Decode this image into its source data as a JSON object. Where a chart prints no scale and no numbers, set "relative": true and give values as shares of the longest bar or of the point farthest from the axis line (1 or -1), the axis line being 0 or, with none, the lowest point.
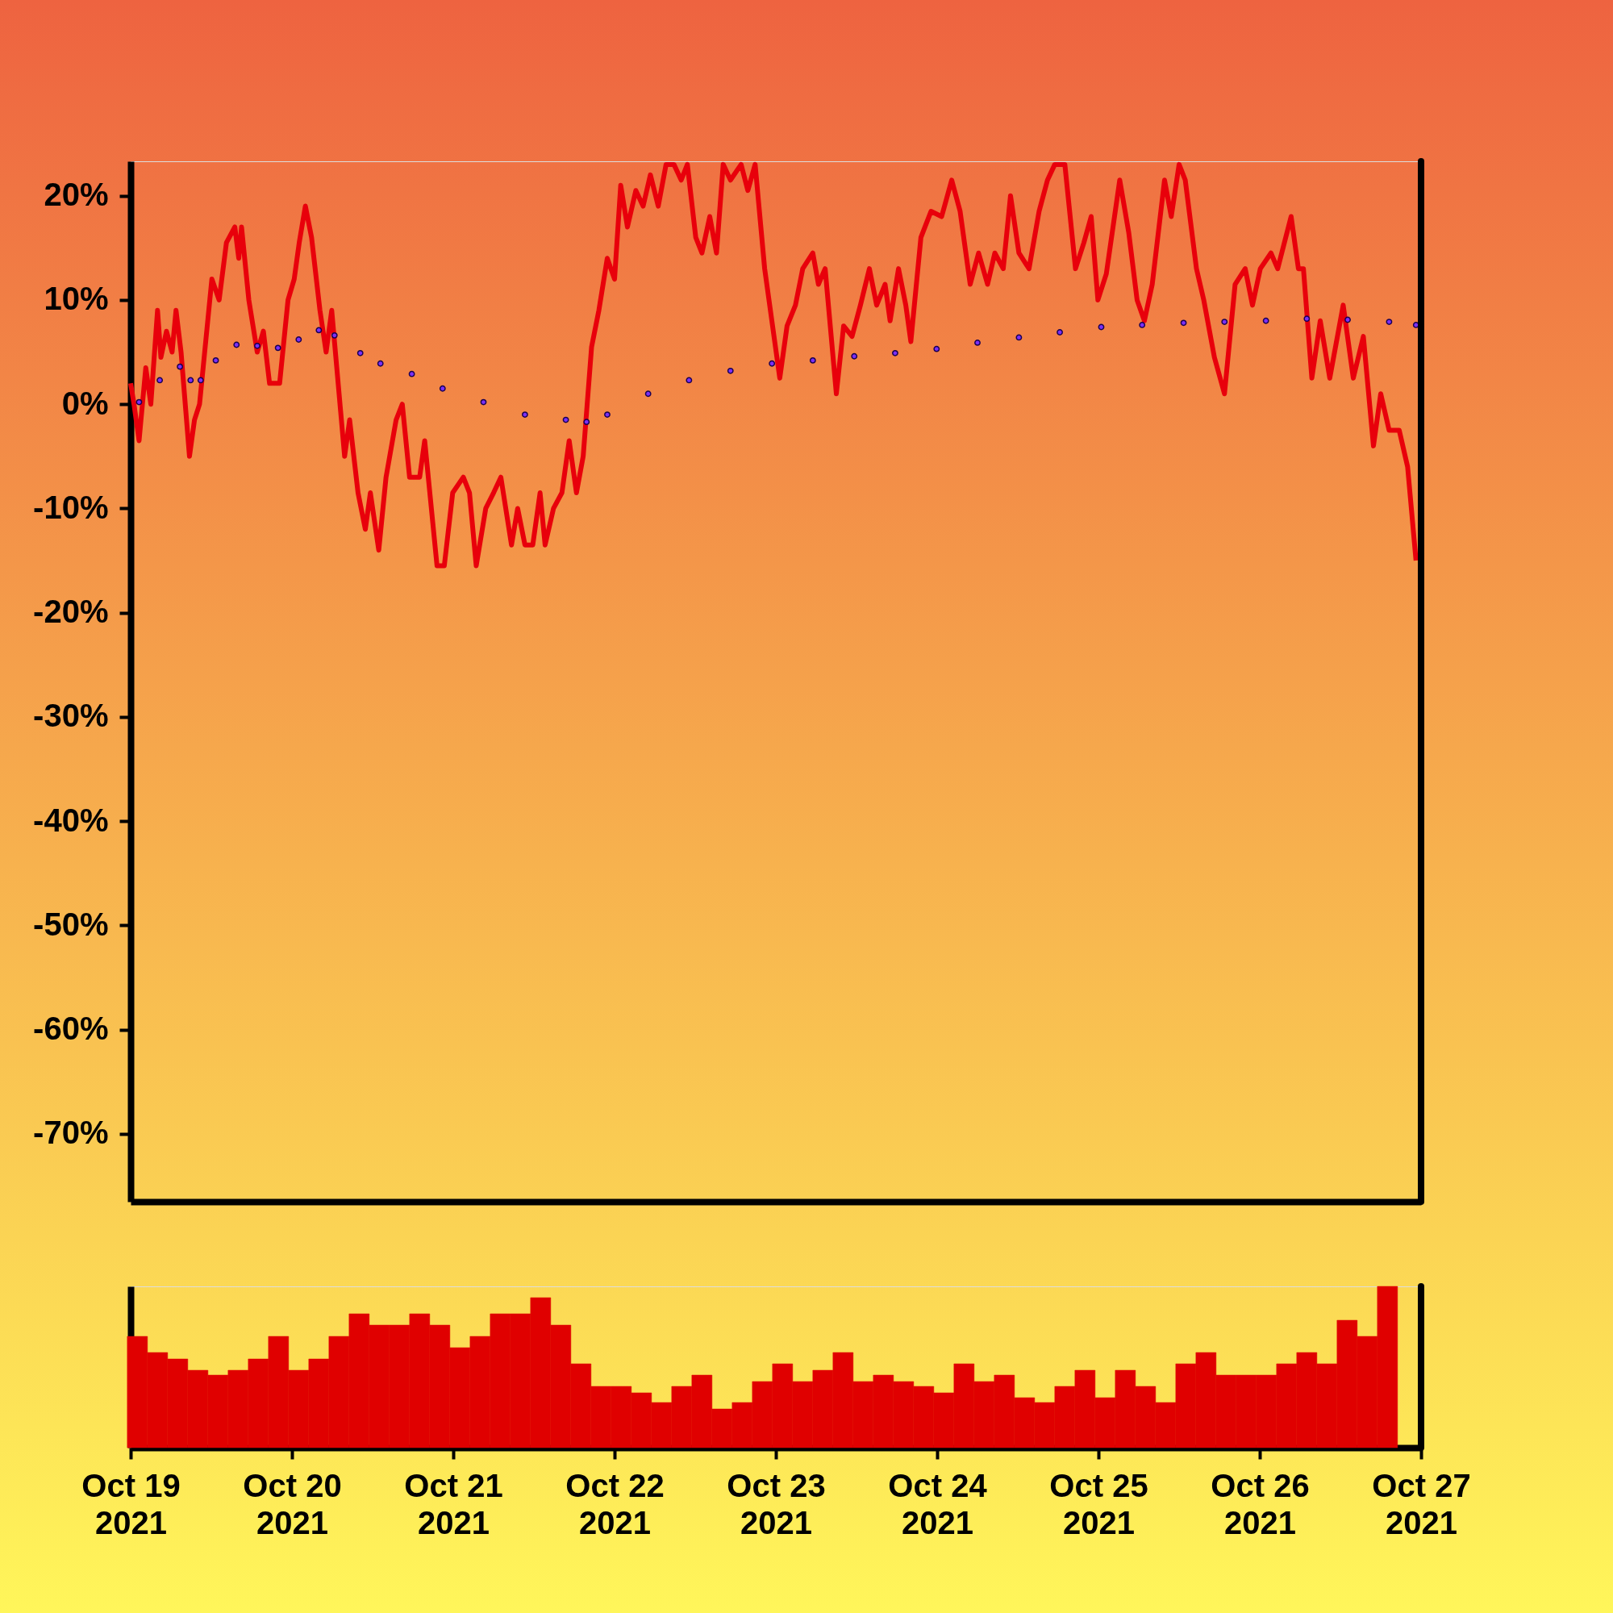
{
  "chart_data": [
    {
      "type": "line",
      "xlim": [
        "2021-10-19",
        "2021-10-27"
      ],
      "ylim": [
        -76.5,
        23.3
      ],
      "yticks": [
        {
          "value": 20,
          "label": "20%"
        },
        {
          "value": 10,
          "label": "10%"
        },
        {
          "value": 0,
          "label": "0%"
        },
        {
          "value": -10,
          "label": "-10%"
        },
        {
          "value": -20,
          "label": "-20%"
        },
        {
          "value": -30,
          "label": "-30%"
        },
        {
          "value": -40,
          "label": "-40%"
        },
        {
          "value": -50,
          "label": "-50%"
        },
        {
          "value": -60,
          "label": "-60%"
        },
        {
          "value": -70,
          "label": "-70%"
        }
      ],
      "tick_labels": "y",
      "grid": false,
      "series": [
        {
          "color": "#e8000b",
          "marker": "none",
          "line_style": "solid",
          "x": [
            "2021-10-19T00:00",
            "2021-10-19T00:30",
            "2021-10-19T01:15",
            "2021-10-19T02:15",
            "2021-10-19T03:00",
            "2021-10-19T04:00",
            "2021-10-19T04:30",
            "2021-10-19T05:20",
            "2021-10-19T06:10",
            "2021-10-19T06:45",
            "2021-10-19T07:30",
            "2021-10-19T08:45",
            "2021-10-19T09:30",
            "2021-10-19T10:15",
            "2021-10-19T12:05",
            "2021-10-19T13:10",
            "2021-10-19T14:15",
            "2021-10-19T15:30",
            "2021-10-19T16:05",
            "2021-10-19T16:30",
            "2021-10-19T17:35",
            "2021-10-19T18:50",
            "2021-10-19T19:45",
            "2021-10-19T20:40",
            "2021-10-19T22:10",
            "2021-10-19T23:25",
            "2021-10-20T00:20",
            "2021-10-20T01:05",
            "2021-10-20T02:00",
            "2021-10-20T02:55",
            "2021-10-20T04:10",
            "2021-10-20T05:05",
            "2021-10-20T05:55",
            "2021-10-20T07:50",
            "2021-10-20T08:35",
            "2021-10-20T09:50",
            "2021-10-20T10:55",
            "2021-10-20T11:40",
            "2021-10-20T12:55",
            "2021-10-20T14:00",
            "2021-10-20T15:30",
            "2021-10-20T16:25",
            "2021-10-20T17:30",
            "2021-10-20T19:00",
            "2021-10-20T19:45",
            "2021-10-20T21:35",
            "2021-10-20T22:40",
            "2021-10-20T23:55",
            "2021-10-21T01:30",
            "2021-10-21T02:25",
            "2021-10-21T03:25",
            "2021-10-21T04:50",
            "2021-10-21T06:00",
            "2021-10-21T07:05",
            "2021-10-21T08:40",
            "2021-10-21T09:35",
            "2021-10-21T10:40",
            "2021-10-21T11:50",
            "2021-10-21T12:55",
            "2021-10-21T13:40",
            "2021-10-21T14:55",
            "2021-10-21T16:10",
            "2021-10-21T17:15",
            "2021-10-21T18:20",
            "2021-10-21T19:20",
            "2021-10-21T20:35",
            "2021-10-21T21:40",
            "2021-10-21T22:55",
            "2021-10-22T00:00",
            "2021-10-22T00:55",
            "2021-10-22T01:55",
            "2021-10-22T03:10",
            "2021-10-22T04:15",
            "2021-10-22T05:20",
            "2021-10-22T06:30",
            "2021-10-22T07:40",
            "2021-10-22T08:50",
            "2021-10-22T09:55",
            "2021-10-22T10:50",
            "2021-10-22T12:05",
            "2021-10-22T13:00",
            "2021-10-22T14:10",
            "2021-10-22T15:10",
            "2021-10-22T16:10",
            "2021-10-22T17:15",
            "2021-10-22T18:50",
            "2021-10-22T19:50",
            "2021-10-22T20:55",
            "2021-10-22T22:20",
            "2021-10-23T00:35",
            "2021-10-23T01:40",
            "2021-10-23T02:55",
            "2021-10-23T04:00",
            "2021-10-23T05:30",
            "2021-10-23T06:20",
            "2021-10-23T07:20",
            "2021-10-23T09:00",
            "2021-10-23T10:05",
            "2021-10-23T11:20",
            "2021-10-23T12:35",
            "2021-10-23T13:55",
            "2021-10-23T15:00",
            "2021-10-23T16:15",
            "2021-10-23T17:00",
            "2021-10-23T18:15",
            "2021-10-23T19:20",
            "2021-10-23T20:05",
            "2021-10-23T21:35",
            "2021-10-23T23:05",
            "2021-10-24T00:40",
            "2021-10-24T02:10",
            "2021-10-24T03:25",
            "2021-10-24T04:55",
            "2021-10-24T06:10",
            "2021-10-24T07:30",
            "2021-10-24T08:35",
            "2021-10-24T09:50",
            "2021-10-24T10:55",
            "2021-10-24T12:10",
            "2021-10-24T13:40",
            "2021-10-24T15:10",
            "2021-10-24T16:25",
            "2021-10-24T17:30",
            "2021-10-24T19:00",
            "2021-10-24T20:35",
            "2021-10-24T21:50",
            "2021-10-24T22:55",
            "2021-10-24T23:55",
            "2021-10-25T01:10",
            "2021-10-25T03:10",
            "2021-10-25T04:30",
            "2021-10-25T05:45",
            "2021-10-25T06:50",
            "2021-10-25T08:00",
            "2021-10-25T09:50",
            "2021-10-25T10:50",
            "2021-10-25T12:00",
            "2021-10-25T12:55",
            "2021-10-25T14:35",
            "2021-10-25T15:40",
            "2021-10-25T17:15",
            "2021-10-25T18:45",
            "2021-10-25T20:20",
            "2021-10-25T21:50",
            "2021-10-25T22:55",
            "2021-10-26T00:05",
            "2021-10-26T01:40",
            "2021-10-26T02:40",
            "2021-10-26T04:40",
            "2021-10-26T05:45",
            "2021-10-26T06:30",
            "2021-10-26T07:45",
            "2021-10-26T09:00",
            "2021-10-26T10:25",
            "2021-10-26T12:25",
            "2021-10-26T13:55",
            "2021-10-26T15:25",
            "2021-10-26T16:55",
            "2021-10-26T18:00",
            "2021-10-26T19:15",
            "2021-10-26T20:45",
            "2021-10-26T22:00",
            "2021-10-26T23:15"
          ],
          "values": [
            2,
            0,
            -3.5,
            3.5,
            0,
            9,
            4.5,
            7,
            5,
            9,
            5,
            -5,
            -1.5,
            0,
            12,
            10,
            15.5,
            17,
            14,
            17,
            10,
            5,
            7,
            2,
            2,
            10,
            12,
            15.5,
            19,
            16,
            9,
            5,
            9,
            -5,
            -1.5,
            -8.5,
            -12,
            -8.5,
            -14,
            -7,
            -1.5,
            0,
            -7,
            -7,
            -3.5,
            -15.5,
            -15.5,
            -8.5,
            -7,
            -8.5,
            -15.5,
            -10,
            -8.5,
            -7,
            -13.5,
            -10,
            -13.5,
            -13.5,
            -8.5,
            -13.5,
            -10,
            -8.5,
            -3.5,
            -8.5,
            -5,
            5.5,
            9,
            14,
            12,
            21,
            17,
            20.5,
            19,
            22,
            19,
            23,
            23,
            21.5,
            23,
            16,
            14.5,
            18,
            14.5,
            23,
            21.5,
            23,
            20.5,
            23,
            13,
            2.5,
            7.5,
            9.5,
            13,
            14.5,
            11.5,
            13,
            1,
            7.5,
            6.5,
            9.5,
            13,
            9.5,
            11.5,
            8,
            13,
            9.5,
            6,
            16,
            18.5,
            18,
            21.5,
            18.5,
            11.5,
            14.5,
            11.5,
            14.5,
            13,
            20,
            14.5,
            13,
            18.5,
            21.5,
            23,
            23,
            13,
            15.5,
            18,
            10,
            12.5,
            21.5,
            16.5,
            10,
            8,
            11.5,
            21.5,
            18,
            23,
            21.5,
            13,
            10,
            4.5,
            1,
            11.5,
            13,
            9.5,
            13,
            14.5,
            13,
            18,
            13,
            13,
            2.5,
            8,
            2.5,
            9.5,
            2.5,
            6.5,
            -4,
            1,
            -2.5,
            -2.5,
            -6,
            -15
          ]
        },
        {
          "type": "scatter",
          "color": "#7b2ff7",
          "marker": "circle",
          "x": [
            "2021-10-19T01:15",
            "2021-10-19T04:20",
            "2021-10-19T07:20",
            "2021-10-19T08:55",
            "2021-10-19T10:25",
            "2021-10-19T12:40",
            "2021-10-19T15:45",
            "2021-10-19T18:50",
            "2021-10-19T21:55",
            "2021-10-20T01:00",
            "2021-10-20T04:00",
            "2021-10-20T06:20",
            "2021-10-20T10:10",
            "2021-10-20T13:10",
            "2021-10-20T17:50",
            "2021-10-20T22:25",
            "2021-10-21T04:30",
            "2021-10-21T10:40",
            "2021-10-21T16:45",
            "2021-10-21T19:50",
            "2021-10-21T22:55",
            "2021-10-22T05:00",
            "2021-10-22T11:05",
            "2021-10-22T17:15",
            "2021-10-22T23:25",
            "2021-10-23T05:30",
            "2021-10-23T11:40",
            "2021-10-23T17:45",
            "2021-10-23T23:55",
            "2021-10-24T06:00",
            "2021-10-24T12:10",
            "2021-10-24T18:15",
            "2021-10-25T00:25",
            "2021-10-25T06:30",
            "2021-10-25T12:40",
            "2021-10-25T18:45",
            "2021-10-26T00:55",
            "2021-10-26T07:00",
            "2021-10-26T13:05",
            "2021-10-26T19:15",
            "2021-10-26T23:15"
          ],
          "values": [
            0.2,
            2.3,
            3.6,
            2.3,
            2.3,
            4.2,
            5.7,
            5.6,
            5.4,
            6.2,
            7.1,
            6.6,
            4.9,
            3.9,
            2.9,
            1.5,
            0.2,
            -1,
            -1.5,
            -1.7,
            -1,
            1,
            2.3,
            3.2,
            3.9,
            4.2,
            4.6,
            4.9,
            5.3,
            5.9,
            6.4,
            6.9,
            7.4,
            7.6,
            7.8,
            7.9,
            8.0,
            8.2,
            8.1,
            7.9,
            7.6
          ]
        }
      ]
    },
    {
      "type": "bar",
      "relative": true,
      "color": "#e00000",
      "xlim": [
        "2021-10-19",
        "2021-10-27"
      ],
      "xticks": [
        {
          "value": "2021-10-19",
          "label": "Oct 19\n2021"
        },
        {
          "value": "2021-10-20",
          "label": "Oct 20\n2021"
        },
        {
          "value": "2021-10-21",
          "label": "Oct 21\n2021"
        },
        {
          "value": "2021-10-22",
          "label": "Oct 22\n2021"
        },
        {
          "value": "2021-10-23",
          "label": "Oct 23\n2021"
        },
        {
          "value": "2021-10-24",
          "label": "Oct 24\n2021"
        },
        {
          "value": "2021-10-25",
          "label": "Oct 25\n2021"
        },
        {
          "value": "2021-10-26",
          "label": "Oct 26\n2021"
        },
        {
          "value": "2021-10-27",
          "label": "Oct 27\n2021"
        }
      ],
      "tick_labels": "x",
      "grid": false,
      "x": [
        "2021-10-19T01:00",
        "2021-10-19T04:00",
        "2021-10-19T07:00",
        "2021-10-19T10:00",
        "2021-10-19T13:00",
        "2021-10-19T16:00",
        "2021-10-19T19:00",
        "2021-10-19T22:00",
        "2021-10-20T01:00",
        "2021-10-20T04:00",
        "2021-10-20T07:00",
        "2021-10-20T10:00",
        "2021-10-20T13:00",
        "2021-10-20T16:00",
        "2021-10-20T19:00",
        "2021-10-20T22:00",
        "2021-10-21T01:00",
        "2021-10-21T04:00",
        "2021-10-21T07:00",
        "2021-10-21T10:00",
        "2021-10-21T13:00",
        "2021-10-21T16:00",
        "2021-10-21T19:00",
        "2021-10-21T22:00",
        "2021-10-22T01:00",
        "2021-10-22T04:00",
        "2021-10-22T07:00",
        "2021-10-22T10:00",
        "2021-10-22T13:00",
        "2021-10-22T16:00",
        "2021-10-22T19:00",
        "2021-10-22T22:00",
        "2021-10-23T01:00",
        "2021-10-23T04:00",
        "2021-10-23T07:00",
        "2021-10-23T10:00",
        "2021-10-23T13:00",
        "2021-10-23T16:00",
        "2021-10-23T19:00",
        "2021-10-23T22:00",
        "2021-10-24T01:00",
        "2021-10-24T04:00",
        "2021-10-24T07:00",
        "2021-10-24T10:00",
        "2021-10-24T13:00",
        "2021-10-24T16:00",
        "2021-10-24T19:00",
        "2021-10-24T22:00",
        "2021-10-25T01:00",
        "2021-10-25T04:00",
        "2021-10-25T07:00",
        "2021-10-25T10:00",
        "2021-10-25T13:00",
        "2021-10-25T16:00",
        "2021-10-25T19:00",
        "2021-10-25T22:00",
        "2021-10-26T01:00",
        "2021-10-26T04:00",
        "2021-10-26T07:00",
        "2021-10-26T10:00",
        "2021-10-26T13:00",
        "2021-10-26T16:00",
        "2021-10-26T19:00"
      ],
      "values": [
        0.69,
        0.59,
        0.55,
        0.48,
        0.45,
        0.48,
        0.55,
        0.69,
        0.48,
        0.55,
        0.69,
        0.83,
        0.76,
        0.76,
        0.83,
        0.76,
        0.62,
        0.69,
        0.83,
        0.83,
        0.93,
        0.76,
        0.52,
        0.38,
        0.38,
        0.34,
        0.28,
        0.38,
        0.45,
        0.24,
        0.28,
        0.41,
        0.52,
        0.41,
        0.48,
        0.59,
        0.41,
        0.45,
        0.41,
        0.38,
        0.34,
        0.52,
        0.41,
        0.45,
        0.31,
        0.28,
        0.38,
        0.48,
        0.31,
        0.48,
        0.38,
        0.28,
        0.52,
        0.59,
        0.45,
        0.45,
        0.45,
        0.52,
        0.59,
        0.52,
        0.79,
        0.69,
        1.0
      ]
    }
  ]
}
